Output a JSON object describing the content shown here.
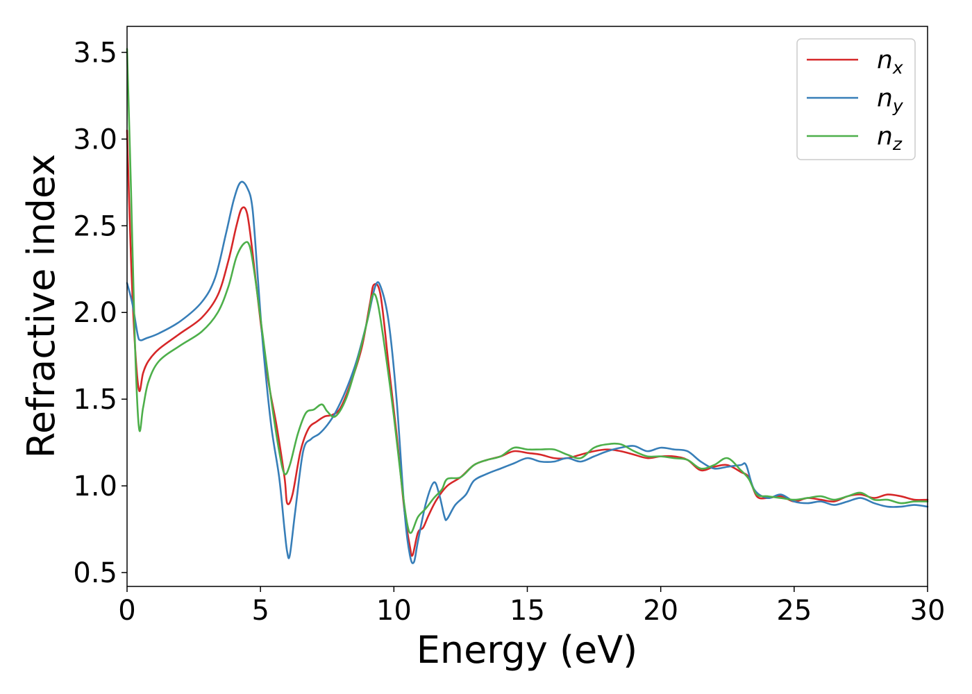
{
  "chart_data": {
    "type": "line",
    "title": "",
    "xlabel": "Energy (eV)",
    "ylabel": "Refractive index",
    "xlim": [
      0,
      30
    ],
    "ylim": [
      0.42,
      3.65
    ],
    "xticks": [
      0,
      5,
      10,
      15,
      20,
      25,
      30
    ],
    "xtick_labels": [
      "0",
      "5",
      "10",
      "15",
      "20",
      "25",
      "30"
    ],
    "yticks": [
      0.5,
      1.0,
      1.5,
      2.0,
      2.5,
      3.0,
      3.5
    ],
    "ytick_labels": [
      "0.5",
      "1.0",
      "1.5",
      "2.0",
      "2.5",
      "3.0",
      "3.5"
    ],
    "grid": false,
    "legend": "top-right",
    "series": [
      {
        "name": "n_x",
        "label_base": "n",
        "label_sub": "x",
        "color": "#d62728",
        "points": [
          [
            0,
            3.05
          ],
          [
            0.15,
            2.3
          ],
          [
            0.3,
            1.8
          ],
          [
            0.45,
            1.55
          ],
          [
            0.6,
            1.65
          ],
          [
            0.8,
            1.72
          ],
          [
            1.2,
            1.79
          ],
          [
            2,
            1.88
          ],
          [
            2.8,
            1.97
          ],
          [
            3.4,
            2.1
          ],
          [
            3.8,
            2.3
          ],
          [
            4.1,
            2.5
          ],
          [
            4.3,
            2.6
          ],
          [
            4.5,
            2.57
          ],
          [
            4.7,
            2.35
          ],
          [
            5.0,
            1.95
          ],
          [
            5.3,
            1.6
          ],
          [
            5.6,
            1.35
          ],
          [
            5.9,
            1.05
          ],
          [
            6.0,
            0.9
          ],
          [
            6.2,
            0.95
          ],
          [
            6.5,
            1.2
          ],
          [
            6.8,
            1.33
          ],
          [
            7.1,
            1.37
          ],
          [
            7.4,
            1.4
          ],
          [
            7.7,
            1.41
          ],
          [
            8.0,
            1.45
          ],
          [
            8.4,
            1.6
          ],
          [
            8.8,
            1.8
          ],
          [
            9.1,
            2.05
          ],
          [
            9.25,
            2.16
          ],
          [
            9.5,
            2.1
          ],
          [
            9.8,
            1.7
          ],
          [
            10.1,
            1.3
          ],
          [
            10.4,
            0.85
          ],
          [
            10.6,
            0.65
          ],
          [
            10.7,
            0.6
          ],
          [
            10.9,
            0.73
          ],
          [
            11.1,
            0.76
          ],
          [
            11.3,
            0.83
          ],
          [
            11.6,
            0.92
          ],
          [
            12,
            1.0
          ],
          [
            12.5,
            1.05
          ],
          [
            13,
            1.12
          ],
          [
            13.5,
            1.15
          ],
          [
            14,
            1.17
          ],
          [
            14.5,
            1.2
          ],
          [
            15,
            1.19
          ],
          [
            15.5,
            1.18
          ],
          [
            16,
            1.16
          ],
          [
            16.5,
            1.16
          ],
          [
            17,
            1.18
          ],
          [
            17.5,
            1.2
          ],
          [
            18,
            1.21
          ],
          [
            18.5,
            1.2
          ],
          [
            19,
            1.18
          ],
          [
            19.5,
            1.16
          ],
          [
            20,
            1.17
          ],
          [
            20.5,
            1.17
          ],
          [
            21,
            1.15
          ],
          [
            21.5,
            1.09
          ],
          [
            22,
            1.11
          ],
          [
            22.5,
            1.12
          ],
          [
            23,
            1.08
          ],
          [
            23.3,
            1.05
          ],
          [
            23.6,
            0.94
          ],
          [
            24,
            0.93
          ],
          [
            24.5,
            0.94
          ],
          [
            25,
            0.91
          ],
          [
            25.5,
            0.93
          ],
          [
            26,
            0.92
          ],
          [
            26.5,
            0.91
          ],
          [
            27,
            0.94
          ],
          [
            27.5,
            0.95
          ],
          [
            28,
            0.93
          ],
          [
            28.5,
            0.95
          ],
          [
            29,
            0.94
          ],
          [
            29.5,
            0.92
          ],
          [
            30,
            0.92
          ]
        ]
      },
      {
        "name": "n_y",
        "label_base": "n",
        "label_sub": "y",
        "color": "#377eb8",
        "points": [
          [
            0,
            2.17
          ],
          [
            0.2,
            2.05
          ],
          [
            0.4,
            1.87
          ],
          [
            0.5,
            1.84
          ],
          [
            0.7,
            1.85
          ],
          [
            1.2,
            1.88
          ],
          [
            2,
            1.95
          ],
          [
            2.8,
            2.06
          ],
          [
            3.3,
            2.2
          ],
          [
            3.7,
            2.45
          ],
          [
            4.0,
            2.65
          ],
          [
            4.25,
            2.75
          ],
          [
            4.5,
            2.72
          ],
          [
            4.7,
            2.6
          ],
          [
            4.9,
            2.2
          ],
          [
            5.1,
            1.8
          ],
          [
            5.4,
            1.35
          ],
          [
            5.7,
            1.05
          ],
          [
            5.9,
            0.75
          ],
          [
            6.0,
            0.62
          ],
          [
            6.1,
            0.6
          ],
          [
            6.3,
            0.85
          ],
          [
            6.6,
            1.2
          ],
          [
            6.9,
            1.27
          ],
          [
            7.2,
            1.3
          ],
          [
            7.5,
            1.35
          ],
          [
            7.8,
            1.42
          ],
          [
            8.2,
            1.55
          ],
          [
            8.6,
            1.72
          ],
          [
            9.0,
            1.95
          ],
          [
            9.3,
            2.15
          ],
          [
            9.5,
            2.15
          ],
          [
            9.8,
            1.95
          ],
          [
            10.1,
            1.5
          ],
          [
            10.4,
            0.85
          ],
          [
            10.6,
            0.6
          ],
          [
            10.75,
            0.56
          ],
          [
            10.9,
            0.68
          ],
          [
            11.2,
            0.9
          ],
          [
            11.5,
            1.02
          ],
          [
            11.7,
            0.95
          ],
          [
            11.9,
            0.82
          ],
          [
            12,
            0.81
          ],
          [
            12.3,
            0.89
          ],
          [
            12.7,
            0.95
          ],
          [
            13,
            1.03
          ],
          [
            13.5,
            1.07
          ],
          [
            14,
            1.1
          ],
          [
            14.5,
            1.13
          ],
          [
            15,
            1.16
          ],
          [
            15.5,
            1.14
          ],
          [
            16,
            1.14
          ],
          [
            16.5,
            1.16
          ],
          [
            17,
            1.14
          ],
          [
            17.5,
            1.17
          ],
          [
            18,
            1.2
          ],
          [
            18.5,
            1.22
          ],
          [
            19,
            1.23
          ],
          [
            19.5,
            1.2
          ],
          [
            20,
            1.22
          ],
          [
            20.5,
            1.21
          ],
          [
            21,
            1.2
          ],
          [
            21.5,
            1.14
          ],
          [
            22,
            1.1
          ],
          [
            22.5,
            1.11
          ],
          [
            23,
            1.12
          ],
          [
            23.2,
            1.12
          ],
          [
            23.5,
            0.98
          ],
          [
            24,
            0.93
          ],
          [
            24.5,
            0.95
          ],
          [
            25,
            0.91
          ],
          [
            25.5,
            0.9
          ],
          [
            26,
            0.91
          ],
          [
            26.5,
            0.89
          ],
          [
            27,
            0.91
          ],
          [
            27.5,
            0.93
          ],
          [
            28,
            0.9
          ],
          [
            28.5,
            0.88
          ],
          [
            29,
            0.88
          ],
          [
            29.5,
            0.89
          ],
          [
            30,
            0.88
          ]
        ]
      },
      {
        "name": "n_z",
        "label_base": "n",
        "label_sub": "z",
        "color": "#4daf4a",
        "points": [
          [
            0,
            3.52
          ],
          [
            0.15,
            2.7
          ],
          [
            0.3,
            1.8
          ],
          [
            0.45,
            1.33
          ],
          [
            0.6,
            1.45
          ],
          [
            0.8,
            1.6
          ],
          [
            1.2,
            1.72
          ],
          [
            2,
            1.81
          ],
          [
            2.8,
            1.89
          ],
          [
            3.4,
            2.0
          ],
          [
            3.8,
            2.15
          ],
          [
            4.1,
            2.32
          ],
          [
            4.4,
            2.4
          ],
          [
            4.6,
            2.38
          ],
          [
            4.8,
            2.2
          ],
          [
            5.1,
            1.85
          ],
          [
            5.4,
            1.5
          ],
          [
            5.7,
            1.2
          ],
          [
            5.9,
            1.07
          ],
          [
            6.1,
            1.12
          ],
          [
            6.4,
            1.3
          ],
          [
            6.7,
            1.42
          ],
          [
            7.0,
            1.44
          ],
          [
            7.3,
            1.47
          ],
          [
            7.5,
            1.43
          ],
          [
            7.8,
            1.4
          ],
          [
            8.2,
            1.5
          ],
          [
            8.6,
            1.7
          ],
          [
            9.0,
            1.95
          ],
          [
            9.2,
            2.1
          ],
          [
            9.4,
            2.05
          ],
          [
            9.7,
            1.75
          ],
          [
            10.0,
            1.4
          ],
          [
            10.3,
            1.0
          ],
          [
            10.5,
            0.78
          ],
          [
            10.65,
            0.73
          ],
          [
            10.9,
            0.82
          ],
          [
            11.2,
            0.87
          ],
          [
            11.5,
            0.93
          ],
          [
            11.8,
            0.98
          ],
          [
            12,
            1.04
          ],
          [
            12.5,
            1.05
          ],
          [
            13,
            1.12
          ],
          [
            13.5,
            1.15
          ],
          [
            14,
            1.17
          ],
          [
            14.5,
            1.22
          ],
          [
            15,
            1.21
          ],
          [
            15.5,
            1.21
          ],
          [
            16,
            1.21
          ],
          [
            16.5,
            1.18
          ],
          [
            17,
            1.16
          ],
          [
            17.5,
            1.22
          ],
          [
            18,
            1.24
          ],
          [
            18.5,
            1.24
          ],
          [
            19,
            1.2
          ],
          [
            19.5,
            1.17
          ],
          [
            20,
            1.17
          ],
          [
            20.5,
            1.16
          ],
          [
            21,
            1.15
          ],
          [
            21.5,
            1.1
          ],
          [
            22,
            1.12
          ],
          [
            22.5,
            1.16
          ],
          [
            23,
            1.09
          ],
          [
            23.3,
            1.04
          ],
          [
            23.6,
            0.95
          ],
          [
            24,
            0.94
          ],
          [
            24.5,
            0.93
          ],
          [
            25,
            0.92
          ],
          [
            25.5,
            0.93
          ],
          [
            26,
            0.94
          ],
          [
            26.5,
            0.92
          ],
          [
            27,
            0.94
          ],
          [
            27.5,
            0.96
          ],
          [
            28,
            0.92
          ],
          [
            28.5,
            0.92
          ],
          [
            29,
            0.9
          ],
          [
            29.5,
            0.91
          ],
          [
            30,
            0.91
          ]
        ]
      }
    ]
  }
}
